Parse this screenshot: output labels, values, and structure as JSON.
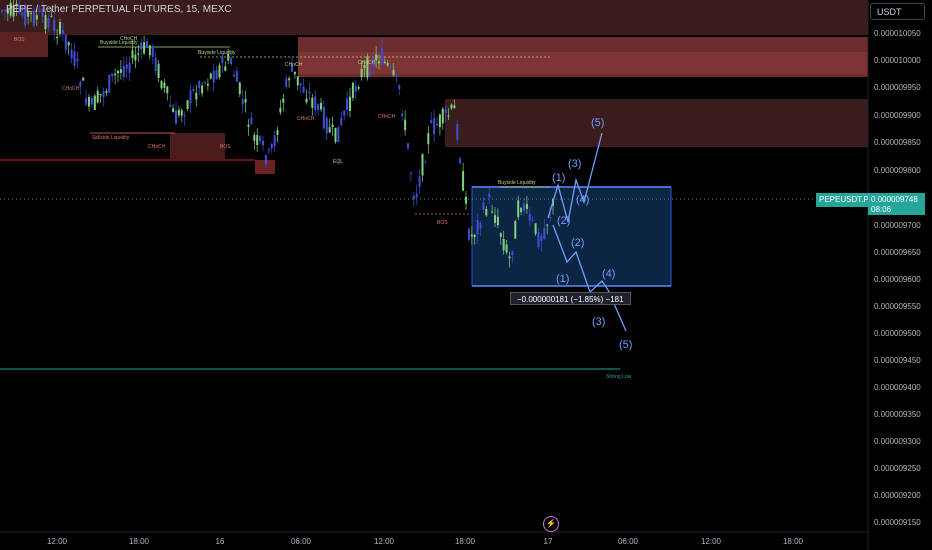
{
  "header": {
    "symbol_line": "PEPE / Tether PERPETUAL FUTURES, 15, MEXC"
  },
  "currency_button": "USDT",
  "price_axis": {
    "ticks": [
      "0.000010050",
      "0.000010000",
      "0.000009950",
      "0.000009900",
      "0.000009850",
      "0.000009800",
      "0.000009700",
      "0.000009650",
      "0.000009600",
      "0.000009550",
      "0.000009500",
      "0.000009450",
      "0.000009400",
      "0.000009350",
      "0.000009300",
      "0.000009250",
      "0.000009200",
      "0.000009150"
    ]
  },
  "time_axis": {
    "ticks": [
      "12:00",
      "18:00",
      "16",
      "06:00",
      "12:00",
      "18:00",
      "17",
      "06:00",
      "12:00",
      "18:00"
    ]
  },
  "current_price": {
    "symbol_tag": "PEPEUSDT.P",
    "price": "0.000009748",
    "countdown": "08:06"
  },
  "measure_label": "−0.000000181 (−1.85%) −181",
  "annotations": {
    "buyside_liquidity": "Buyside Liquidity",
    "sellside_liquidity": "Sellside Liquidity",
    "choch": "CHoCH",
    "bos": "BOS",
    "eql": "EQL",
    "strong_low": "Strong Low"
  },
  "wave_labels_up": [
    "(1)",
    "(2)",
    "(3)",
    "(4)",
    "(5)"
  ],
  "wave_labels_down": [
    "(1)",
    "(2)",
    "(3)",
    "(4)",
    "(5)"
  ],
  "colors": {
    "bull": "#26a69a",
    "bear": "#3b4cca",
    "bull_candle": "#7fd37f",
    "bear_candle": "#3f4fd8",
    "supply_zone": "#5a2a2a",
    "box_border": "#2962ff",
    "wave": "#6f9fff",
    "accent": "#26a69a"
  },
  "chart_data": {
    "type": "candlestick",
    "ylim": [
      9.14e-06,
      1.008e-05
    ]
  }
}
